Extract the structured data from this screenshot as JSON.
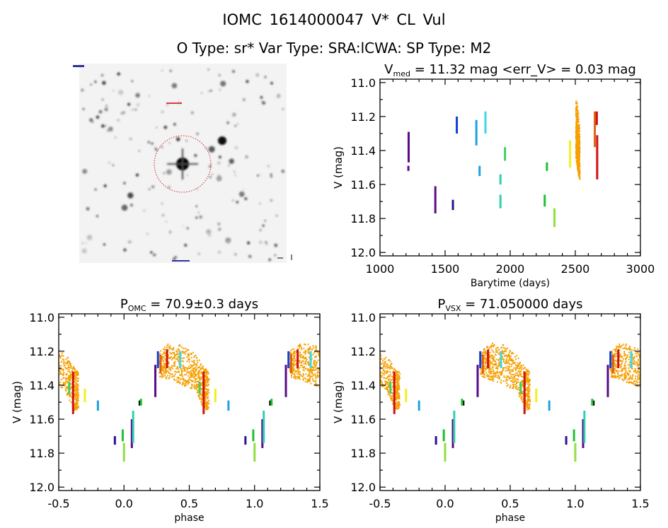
{
  "header": {
    "title": "IOMC 1614000047    V* CL Vul",
    "subtitle": "O Type: sr*  Var Type: SRA:lCWA:  SP Type: M2"
  },
  "colors": {
    "purple": "#5a0a8a",
    "indigo": "#2a1090",
    "blue": "#1040d0",
    "sky": "#20a0e0",
    "cyan": "#40d8e0",
    "teal": "#30d0b0",
    "green": "#40d060",
    "green2": "#20c030",
    "lightgreen": "#90e040",
    "yellow": "#f0f020",
    "orange": "#f5a000",
    "orangered": "#e06010",
    "red": "#d01010",
    "black": "#000000"
  },
  "chart_data": [
    {
      "id": "lightcurve",
      "type": "scatter",
      "title_main": "V",
      "title_sub": "med",
      "title_rest": " = 11.32 mag <err_V> = 0.03 mag",
      "xlabel": "Barytime (days)",
      "ylabel": "V (mag)",
      "xlim": [
        1000,
        3000
      ],
      "ylim": [
        10.98,
        12.02
      ],
      "y_inverted": true,
      "xticks": [
        "1000",
        "1500",
        "2000",
        "2500",
        "3000"
      ],
      "yticks": [
        "11.0",
        "11.2",
        "11.4",
        "11.6",
        "11.8",
        "12.0"
      ],
      "segments": [
        {
          "x": 1220,
          "v": [
            11.29,
            11.47
          ],
          "c": "purple"
        },
        {
          "x": 1218,
          "v": [
            11.49,
            11.52
          ],
          "c": "purple"
        },
        {
          "x": 1425,
          "v": [
            11.61,
            11.77
          ],
          "c": "purple"
        },
        {
          "x": 1560,
          "v": [
            11.69,
            11.75
          ],
          "c": "indigo"
        },
        {
          "x": 1590,
          "v": [
            11.2,
            11.3
          ],
          "c": "blue"
        },
        {
          "x": 1740,
          "v": [
            11.22,
            11.37
          ],
          "c": "sky"
        },
        {
          "x": 1765,
          "v": [
            11.49,
            11.55
          ],
          "c": "sky"
        },
        {
          "x": 1810,
          "v": [
            11.17,
            11.3
          ],
          "c": "cyan"
        },
        {
          "x": 1925,
          "v": [
            11.54,
            11.6
          ],
          "c": "teal"
        },
        {
          "x": 1925,
          "v": [
            11.66,
            11.74
          ],
          "c": "teal"
        },
        {
          "x": 1960,
          "v": [
            11.38,
            11.46
          ],
          "c": "green"
        },
        {
          "x": 2265,
          "v": [
            11.66,
            11.73
          ],
          "c": "green2"
        },
        {
          "x": 2282,
          "v": [
            11.47,
            11.52
          ],
          "c": "green2"
        },
        {
          "x": 2340,
          "v": [
            11.74,
            11.85
          ],
          "c": "lightgreen"
        },
        {
          "x": 2460,
          "v": [
            11.34,
            11.5
          ],
          "c": "yellow"
        },
        {
          "x": 2650,
          "v": [
            11.17,
            11.38
          ],
          "c": "orangered"
        },
        {
          "x": 2665,
          "v": [
            11.17,
            11.25
          ],
          "c": "red"
        },
        {
          "x": 2668,
          "v": [
            11.31,
            11.57
          ],
          "c": "red"
        }
      ],
      "cloud": {
        "c": "orange",
        "anchors": [
          [
            2505,
            11.1,
            11.45
          ],
          [
            2515,
            11.12,
            11.5
          ],
          [
            2525,
            11.2,
            11.55
          ],
          [
            2535,
            11.28,
            11.57
          ]
        ]
      }
    },
    {
      "id": "phase_omc",
      "type": "scatter",
      "title_main": "P",
      "title_sub": "OMC",
      "title_rest": " = 70.9±0.3 days",
      "xlabel": "phase",
      "ylabel": "V (mag)",
      "xlim": [
        -0.5,
        1.5
      ],
      "ylim": [
        10.98,
        12.02
      ],
      "y_inverted": true,
      "xticks": [
        "-0.5",
        "0.0",
        "0.5",
        "1.0",
        "1.5"
      ],
      "yticks": [
        "11.0",
        "11.2",
        "11.4",
        "11.6",
        "11.8",
        "12.0"
      ],
      "segments": [
        {
          "x": 0.24,
          "v": [
            11.28,
            11.47
          ],
          "c": "purple"
        },
        {
          "x": 0.26,
          "v": [
            11.2,
            11.3
          ],
          "c": "blue"
        },
        {
          "x": 0.28,
          "v": [
            11.22,
            11.33
          ],
          "c": "orangered"
        },
        {
          "x": 0.33,
          "v": [
            11.19,
            11.3
          ],
          "c": "red"
        },
        {
          "x": 0.43,
          "v": [
            11.2,
            11.3
          ],
          "c": "cyan"
        },
        {
          "x": 0.58,
          "v": [
            11.38,
            11.45
          ],
          "c": "green"
        },
        {
          "x": 0.61,
          "v": [
            11.32,
            11.57
          ],
          "c": "red"
        },
        {
          "x": 0.7,
          "v": [
            11.42,
            11.5
          ],
          "c": "yellow"
        },
        {
          "x": 0.8,
          "v": [
            11.49,
            11.55
          ],
          "c": "sky"
        },
        {
          "x": 0.93,
          "v": [
            11.7,
            11.75
          ],
          "c": "indigo"
        },
        {
          "x": 0.99,
          "v": [
            11.66,
            11.73
          ],
          "c": "green2"
        },
        {
          "x": 1.0,
          "v": [
            11.74,
            11.85
          ],
          "c": "lightgreen"
        },
        {
          "x": 1.06,
          "v": [
            11.6,
            11.77
          ],
          "c": "purple"
        },
        {
          "x": 1.07,
          "v": [
            11.55,
            11.74
          ],
          "c": "teal"
        },
        {
          "x": 1.12,
          "v": [
            11.49,
            11.52
          ],
          "c": "black"
        },
        {
          "x": 1.13,
          "v": [
            11.48,
            11.52
          ],
          "c": "green2"
        }
      ],
      "cloud": {
        "c": "orange",
        "anchors": [
          [
            0.27,
            11.2,
            11.35
          ],
          [
            0.35,
            11.15,
            11.37
          ],
          [
            0.45,
            11.16,
            11.4
          ],
          [
            0.55,
            11.22,
            11.43
          ],
          [
            0.62,
            11.3,
            11.55
          ],
          [
            0.65,
            11.32,
            11.54
          ]
        ]
      }
    },
    {
      "id": "phase_vsx",
      "type": "scatter",
      "title_main": "P",
      "title_sub": "VSX",
      "title_rest": " = 71.050000 days",
      "xlabel": "phase",
      "ylabel": "V (mag)",
      "xlim": [
        -0.5,
        1.5
      ],
      "ylim": [
        10.98,
        12.02
      ],
      "y_inverted": true,
      "xticks": [
        "-0.5",
        "0.0",
        "0.5",
        "1.0",
        "1.5"
      ],
      "yticks": [
        "11.0",
        "11.2",
        "11.4",
        "11.6",
        "11.8",
        "12.0"
      ],
      "segments": [
        {
          "x": 0.25,
          "v": [
            11.28,
            11.47
          ],
          "c": "purple"
        },
        {
          "x": 0.27,
          "v": [
            11.2,
            11.3
          ],
          "c": "blue"
        },
        {
          "x": 0.29,
          "v": [
            11.22,
            11.33
          ],
          "c": "orangered"
        },
        {
          "x": 0.33,
          "v": [
            11.19,
            11.3
          ],
          "c": "red"
        },
        {
          "x": 0.43,
          "v": [
            11.2,
            11.3
          ],
          "c": "cyan"
        },
        {
          "x": 0.58,
          "v": [
            11.38,
            11.45
          ],
          "c": "green"
        },
        {
          "x": 0.61,
          "v": [
            11.32,
            11.57
          ],
          "c": "red"
        },
        {
          "x": 0.7,
          "v": [
            11.42,
            11.5
          ],
          "c": "yellow"
        },
        {
          "x": 0.8,
          "v": [
            11.49,
            11.55
          ],
          "c": "sky"
        },
        {
          "x": 0.93,
          "v": [
            11.7,
            11.75
          ],
          "c": "indigo"
        },
        {
          "x": 0.99,
          "v": [
            11.66,
            11.73
          ],
          "c": "green2"
        },
        {
          "x": 1.0,
          "v": [
            11.74,
            11.85
          ],
          "c": "lightgreen"
        },
        {
          "x": 1.06,
          "v": [
            11.6,
            11.77
          ],
          "c": "purple"
        },
        {
          "x": 1.07,
          "v": [
            11.55,
            11.74
          ],
          "c": "teal"
        },
        {
          "x": 1.14,
          "v": [
            11.49,
            11.52
          ],
          "c": "black"
        },
        {
          "x": 1.13,
          "v": [
            11.48,
            11.52
          ],
          "c": "green2"
        }
      ],
      "cloud": {
        "c": "orange",
        "anchors": [
          [
            0.27,
            11.2,
            11.35
          ],
          [
            0.35,
            11.15,
            11.37
          ],
          [
            0.45,
            11.16,
            11.4
          ],
          [
            0.55,
            11.22,
            11.43
          ],
          [
            0.62,
            11.3,
            11.55
          ],
          [
            0.65,
            11.32,
            11.54
          ]
        ]
      }
    }
  ]
}
